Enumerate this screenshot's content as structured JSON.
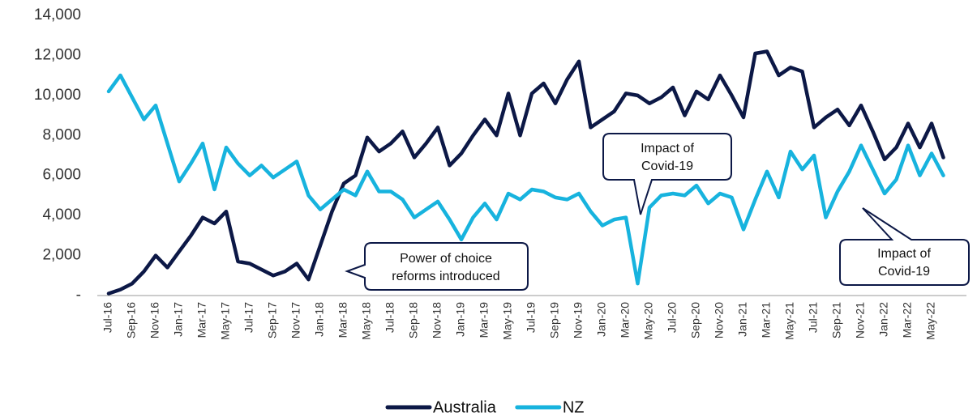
{
  "chart_data": {
    "type": "line",
    "categories": [
      "Jul-16",
      null,
      "Sep-16",
      null,
      "Nov-16",
      null,
      "Jan-17",
      null,
      "Mar-17",
      null,
      "May-17",
      null,
      "Jul-17",
      null,
      "Sep-17",
      null,
      "Nov-17",
      null,
      "Jan-18",
      null,
      "Mar-18",
      null,
      "May-18",
      null,
      "Jul-18",
      null,
      "Sep-18",
      null,
      "Nov-18",
      null,
      "Jan-19",
      null,
      "Mar-19",
      null,
      "May-19",
      null,
      "Jul-19",
      null,
      "Sep-19",
      null,
      "Nov-19",
      null,
      "Jan-20",
      null,
      "Mar-20",
      null,
      "May-20",
      null,
      "Jul-20",
      null,
      "Sep-20",
      null,
      "Nov-20",
      null,
      "Jan-21",
      null,
      "Mar-21",
      null,
      "May-21",
      null,
      "Jul-21",
      null,
      "Sep-21",
      null,
      "Nov-21",
      null,
      "Jan-22",
      null,
      "Mar-22",
      null,
      "May-22",
      null
    ],
    "series": [
      {
        "name": "Australia",
        "color": "#0c1846",
        "values": [
          100,
          300,
          600,
          1200,
          2000,
          1400,
          2200,
          3000,
          3900,
          3600,
          4200,
          1700,
          1600,
          1300,
          1000,
          1200,
          1600,
          800,
          2500,
          4200,
          5600,
          6000,
          7900,
          7200,
          7600,
          8200,
          6900,
          7600,
          8400,
          6500,
          7100,
          8000,
          8800,
          8000,
          10100,
          8000,
          10100,
          10600,
          9600,
          10800,
          11700,
          8400,
          8800,
          9200,
          10100,
          10000,
          9600,
          9900,
          10400,
          9000,
          10200,
          9800,
          11000,
          10000,
          8900,
          12100,
          12200,
          11000,
          11400,
          11200,
          8400,
          8900,
          9300,
          8500,
          9500,
          8200,
          6800,
          7400,
          8600,
          7400,
          8600,
          6900
        ]
      },
      {
        "name": "NZ",
        "color": "#17b3de",
        "values": [
          10200,
          11000,
          9900,
          8800,
          9500,
          7600,
          5700,
          6600,
          7600,
          5300,
          7400,
          6600,
          6000,
          6500,
          5900,
          6300,
          6700,
          5000,
          4300,
          4800,
          5300,
          5000,
          6200,
          5200,
          5200,
          4800,
          3900,
          4300,
          4700,
          3800,
          2800,
          3900,
          4600,
          3800,
          5100,
          4800,
          5300,
          5200,
          4900,
          4800,
          5100,
          4200,
          3500,
          3800,
          3900,
          600,
          4400,
          5000,
          5100,
          5000,
          5500,
          4600,
          5100,
          4900,
          3300,
          4800,
          6200,
          4900,
          7200,
          6300,
          7000,
          3900,
          5200,
          6200,
          7500,
          6300,
          5100,
          5800,
          7500,
          6000,
          7100,
          6000
        ]
      }
    ],
    "ylim": [
      0,
      14000
    ],
    "yticks": [
      {
        "value": 0,
        "label": "-"
      },
      {
        "value": 2000,
        "label": "2,000"
      },
      {
        "value": 4000,
        "label": "4,000"
      },
      {
        "value": 6000,
        "label": "6,000"
      },
      {
        "value": 8000,
        "label": "8,000"
      },
      {
        "value": 10000,
        "label": "10,000"
      },
      {
        "value": 12000,
        "label": "12,000"
      },
      {
        "value": 14000,
        "label": "14,000"
      }
    ],
    "grid": false,
    "legend": "bottom",
    "annotations": [
      {
        "lines": [
          "Power of choice",
          "reforms introduced"
        ]
      },
      {
        "lines": [
          "Impact of",
          "Covid-19"
        ]
      },
      {
        "lines": [
          "Impact of",
          "Covid-19"
        ]
      }
    ]
  }
}
